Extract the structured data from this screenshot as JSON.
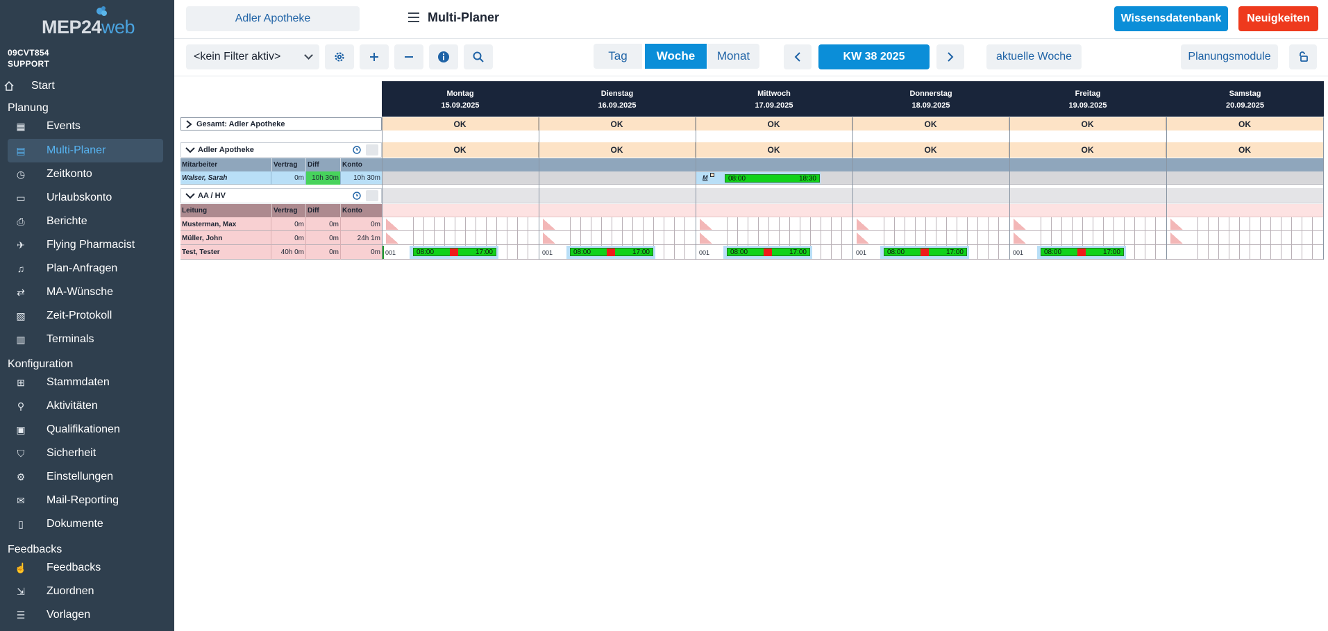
{
  "sidebar": {
    "logo": "MEP24",
    "logo_web": "web",
    "account_line1": "09CVT854",
    "account_line2": "SUPPORT",
    "start": "Start",
    "sections": [
      {
        "title": "Planung",
        "items": [
          "Events",
          "Multi-Planer",
          "Zeitkonto",
          "Urlaubskonto",
          "Berichte",
          "Flying Pharmacist",
          "Plan-Anfragen",
          "MA-Wünsche",
          "Zeit-Protokoll",
          "Terminals"
        ]
      },
      {
        "title": "Konfiguration",
        "items": [
          "Stammdaten",
          "Aktivitäten",
          "Qualifikationen",
          "Sicherheit",
          "Einstellungen",
          "Mail-Reporting",
          "Dokumente"
        ]
      },
      {
        "title": "Feedbacks",
        "items": [
          "Feedbacks",
          "Zuordnen",
          "Vorlagen"
        ]
      }
    ],
    "active_item": "Multi-Planer"
  },
  "header": {
    "branch": "Adler Apotheke",
    "title": "Multi-Planer",
    "knowledge_button": "Wissensdatenbank",
    "news_button": "Neuigkeiten"
  },
  "toolbar": {
    "filter_value": "<kein Filter aktiv>",
    "view_tabs": [
      "Tag",
      "Woche",
      "Monat"
    ],
    "active_view": "Woche",
    "week_label": "KW 38 2025",
    "current_week_button": "aktuelle Woche",
    "modules_button": "Planungsmodule"
  },
  "planner": {
    "days": [
      {
        "name": "Montag",
        "date": "15.09.2025"
      },
      {
        "name": "Dienstag",
        "date": "16.09.2025"
      },
      {
        "name": "Mittwoch",
        "date": "17.09.2025"
      },
      {
        "name": "Donnerstag",
        "date": "18.09.2025"
      },
      {
        "name": "Freitag",
        "date": "19.09.2025"
      },
      {
        "name": "Samstag",
        "date": "20.09.2025"
      }
    ],
    "total_label": "Gesamt: Adler Apotheke",
    "status": "OK",
    "group1": {
      "name": "Adler Apotheke",
      "columns": [
        "Mitarbeiter",
        "Vertrag",
        "Diff",
        "Konto"
      ],
      "rows": [
        {
          "name": "Walser, Sarah",
          "vertrag": "0m",
          "diff": "10h 30m",
          "konto": "10h 30m"
        }
      ],
      "shift_marker": "M",
      "shift_start": "08:00",
      "shift_end": "18:30"
    },
    "group2": {
      "name": "AA / HV",
      "columns": [
        "Leitung",
        "Vertrag",
        "Diff",
        "Konto"
      ],
      "rows": [
        {
          "name": "Musterman, Max",
          "vertrag": "0m",
          "diff": "0m",
          "konto": "0m"
        },
        {
          "name": "Müller, John",
          "vertrag": "0m",
          "diff": "0m",
          "konto": "24h 1m"
        },
        {
          "name": "Test, Tester",
          "vertrag": "40h 0m",
          "diff": "0m",
          "konto": "0m"
        }
      ],
      "shift_code": "001",
      "shift_start": "08:00",
      "shift_end": "17:00"
    }
  },
  "colors": {
    "sidebar": "#2f3f4e",
    "accent": "#0b8ed8",
    "news": "#ee3a1d",
    "dayheader": "#19253a",
    "ok": "#fde3c6",
    "shift": "#11d21a"
  }
}
